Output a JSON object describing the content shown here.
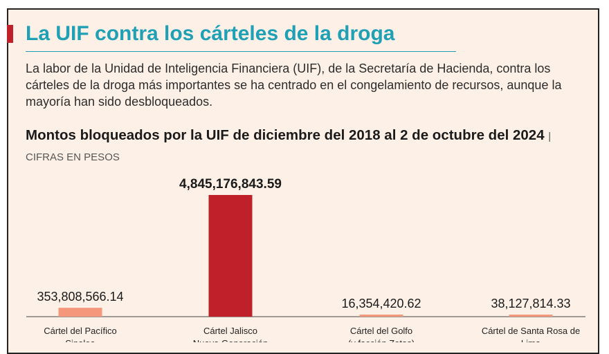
{
  "header": {
    "title": "La UIF contra los cárteles de la droga",
    "intro": "La labor de la Unidad de Inteligencia Financiera (UIF), de la Secretaría de Hacienda, contra los cárteles de la droga más importantes se ha centrado en el congelamiento de recursos, aunque la mayoría han sido desbloqueados.",
    "subtitle": "Montos bloqueados por la UIF de diciembre del 2018 al 2 de octubre del 2024",
    "separator": "|",
    "unit": "CIFRAS EN PESOS"
  },
  "colors": {
    "title": "#1fa0b4",
    "accent": "#c0202a",
    "background": "#fdf1e7",
    "bar_highlight": "#c0202a",
    "bar_default": "#f4977a"
  },
  "chart_data": {
    "type": "bar",
    "title": "Montos bloqueados por la UIF de diciembre del 2018 al 2 de octubre del 2024",
    "ylabel": "",
    "unit": "CIFRAS EN PESOS",
    "categories": [
      "Cártel del Pacífico Sinaloa",
      "Cártel Jalisco Nueva Generación",
      "Cártel del Golfo (y facción Zetas)",
      "Cártel de Santa Rosa de Lima"
    ],
    "values": [
      353808566.14,
      4845176843.59,
      16354420.62,
      38127814.33
    ],
    "value_labels": [
      "353,808,566.14",
      "4,845,176,843.59",
      "16,354,420.62",
      "38,127,814.33"
    ],
    "highlight_index": 1,
    "ylim": [
      0,
      4845176843.59
    ],
    "grid": false,
    "legend": "none"
  }
}
